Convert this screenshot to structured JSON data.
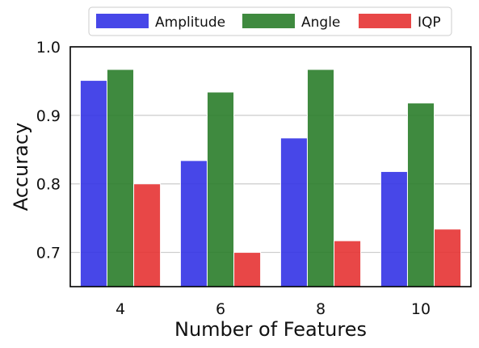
{
  "chart_data": {
    "type": "bar",
    "categories": [
      "4",
      "6",
      "8",
      "10"
    ],
    "series": [
      {
        "name": "Amplitude",
        "color": "#3333e6",
        "values": [
          0.951,
          0.834,
          0.867,
          0.818
        ]
      },
      {
        "name": "Angle",
        "color": "#2a7d2a",
        "values": [
          0.967,
          0.934,
          0.967,
          0.918
        ]
      },
      {
        "name": "IQP",
        "color": "#e63333",
        "values": [
          0.8,
          0.7,
          0.717,
          0.734
        ]
      }
    ],
    "title": "",
    "xlabel": "Number of Features",
    "ylabel": "Accuracy",
    "ylim": [
      0.65,
      1.0
    ],
    "yticks": [
      0.7,
      0.8,
      0.9,
      1.0
    ],
    "ytick_labels": [
      "0.7",
      "0.8",
      "0.9",
      "1.0"
    ],
    "grid": "horizontal",
    "legend_position": "top-center"
  }
}
